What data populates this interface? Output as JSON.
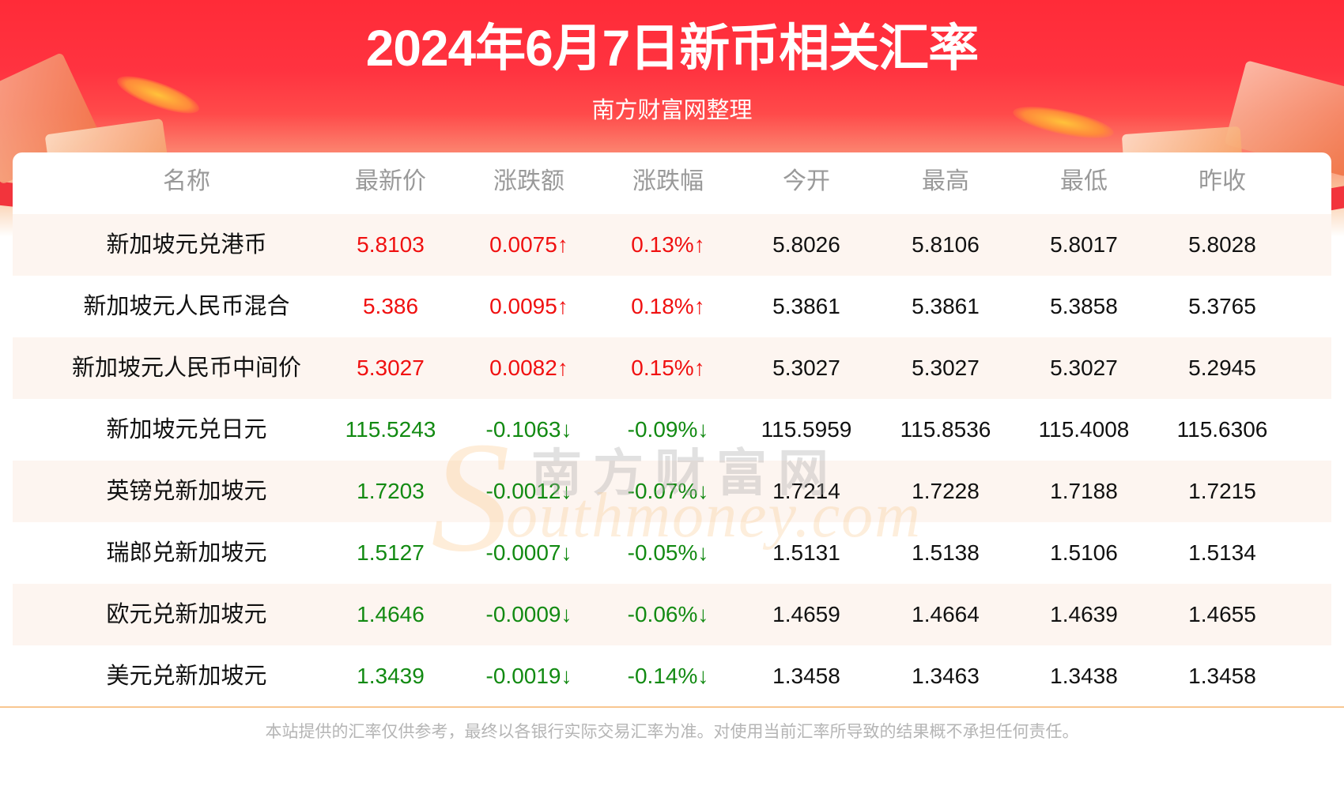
{
  "header": {
    "title": "2024年6月7日新币相关汇率",
    "subtitle": "南方财富网整理"
  },
  "table": {
    "columns": [
      "名称",
      "最新价",
      "涨跌额",
      "涨跌幅",
      "今开",
      "最高",
      "最低",
      "昨收"
    ],
    "rows": [
      {
        "name": "新加坡元兑港币",
        "latest": "5.8103",
        "change": "0.0075↑",
        "pct": "0.13%↑",
        "open": "5.8026",
        "high": "5.8106",
        "low": "5.8017",
        "prev": "5.8028",
        "trend": "up"
      },
      {
        "name": "新加坡元人民币混合",
        "latest": "5.386",
        "change": "0.0095↑",
        "pct": "0.18%↑",
        "open": "5.3861",
        "high": "5.3861",
        "low": "5.3858",
        "prev": "5.3765",
        "trend": "up"
      },
      {
        "name": "新加坡元人民币中间价",
        "latest": "5.3027",
        "change": "0.0082↑",
        "pct": "0.15%↑",
        "open": "5.3027",
        "high": "5.3027",
        "low": "5.3027",
        "prev": "5.2945",
        "trend": "up"
      },
      {
        "name": "新加坡元兑日元",
        "latest": "115.5243",
        "change": "-0.1063↓",
        "pct": "-0.09%↓",
        "open": "115.5959",
        "high": "115.8536",
        "low": "115.4008",
        "prev": "115.6306",
        "trend": "down"
      },
      {
        "name": "英镑兑新加坡元",
        "latest": "1.7203",
        "change": "-0.0012↓",
        "pct": "-0.07%↓",
        "open": "1.7214",
        "high": "1.7228",
        "low": "1.7188",
        "prev": "1.7215",
        "trend": "down"
      },
      {
        "name": "瑞郎兑新加坡元",
        "latest": "1.5127",
        "change": "-0.0007↓",
        "pct": "-0.05%↓",
        "open": "1.5131",
        "high": "1.5138",
        "low": "1.5106",
        "prev": "1.5134",
        "trend": "down"
      },
      {
        "name": "欧元兑新加坡元",
        "latest": "1.4646",
        "change": "-0.0009↓",
        "pct": "-0.06%↓",
        "open": "1.4659",
        "high": "1.4664",
        "low": "1.4639",
        "prev": "1.4655",
        "trend": "down"
      },
      {
        "name": "美元兑新加坡元",
        "latest": "1.3439",
        "change": "-0.0019↓",
        "pct": "-0.14%↓",
        "open": "1.3458",
        "high": "1.3463",
        "low": "1.3438",
        "prev": "1.3458",
        "trend": "down"
      }
    ]
  },
  "watermark": {
    "cn": "南方财富网",
    "s": "S",
    "en": "outhmoney.com"
  },
  "footer": {
    "disclaimer": "本站提供的汇率仅供参考，最终以各银行实际交易汇率为准。对使用当前汇率所导致的结果概不承担任何责任。"
  },
  "colors": {
    "banner_red": "#ff2b38",
    "up": "#f01010",
    "down": "#128a12",
    "alt_row": "#fdf5f0",
    "header_text": "#999999",
    "footer_line": "#f8c690"
  }
}
